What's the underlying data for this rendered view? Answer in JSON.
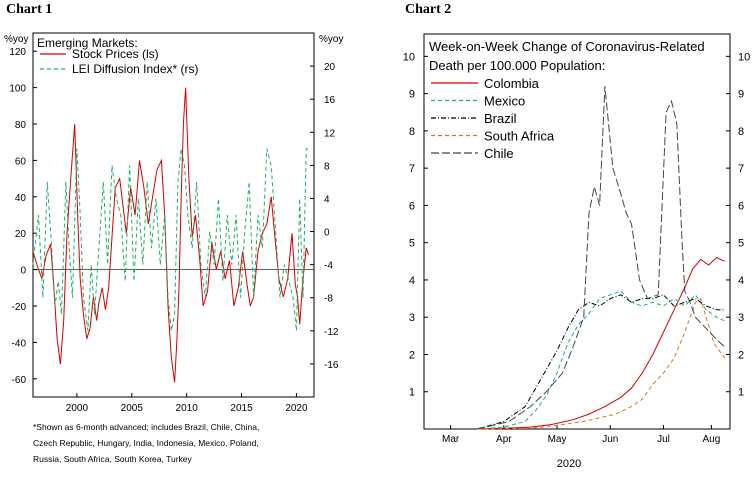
{
  "headings": {
    "chart1": "Chart 1",
    "chart2": "Chart 2"
  },
  "chart_data": [
    {
      "type": "line",
      "title": "Emerging Markets:",
      "y_left_unit": "%yoy",
      "y_right_unit": "%yoy",
      "ylim_left": [
        -70,
        130
      ],
      "ylim_right": [
        -20,
        24
      ],
      "xlim": [
        1996.0,
        2021.6
      ],
      "y_left_ticks": [
        -60,
        -40,
        -20,
        0,
        20,
        40,
        60,
        80,
        100,
        120
      ],
      "y_right_ticks": [
        -16,
        -12,
        -8,
        -4,
        0,
        4,
        8,
        12,
        16,
        20
      ],
      "x_ticks": [
        2000,
        2005,
        2010,
        2015,
        2020
      ],
      "footnote": [
        "*Shown as 6-month advanced; includes Brazil, Chile, China,",
        "Czech Republic, Hungary, India, Indonesia, Mexico, Poland,",
        "Russia, South Africa, South Korea, Turkey"
      ],
      "series": [
        {
          "name": "Stock Prices (ls)",
          "axis": "left",
          "color": "#d40000",
          "dash": "",
          "x": [
            1996.0,
            1996.4,
            1996.8,
            1997.2,
            1997.6,
            1997.9,
            1998.2,
            1998.5,
            1998.8,
            1999.1,
            1999.5,
            1999.8,
            2000.1,
            2000.3,
            2000.6,
            2000.9,
            2001.2,
            2001.5,
            2001.8,
            2002.0,
            2002.3,
            2002.6,
            2002.9,
            2003.2,
            2003.5,
            2003.9,
            2004.2,
            2004.5,
            2004.9,
            2005.3,
            2005.7,
            2006.1,
            2006.5,
            2006.9,
            2007.3,
            2007.7,
            2008.0,
            2008.3,
            2008.6,
            2008.9,
            2009.1,
            2009.3,
            2009.5,
            2009.7,
            2009.9,
            2010.2,
            2010.5,
            2010.8,
            2011.2,
            2011.5,
            2011.9,
            2012.3,
            2012.7,
            2013.1,
            2013.5,
            2013.9,
            2014.3,
            2014.7,
            2015.1,
            2015.5,
            2015.8,
            2016.1,
            2016.5,
            2016.9,
            2017.3,
            2017.7,
            2018.0,
            2018.4,
            2018.8,
            2019.2,
            2019.6,
            2019.9,
            2020.1,
            2020.3,
            2020.6,
            2020.9,
            2021.1
          ],
          "values": [
            10,
            2,
            -5,
            8,
            14,
            -10,
            -38,
            -52,
            -28,
            20,
            55,
            80,
            25,
            -5,
            -25,
            -38,
            -32,
            -15,
            -28,
            -18,
            -10,
            -22,
            -10,
            18,
            45,
            50,
            35,
            20,
            45,
            30,
            60,
            45,
            25,
            40,
            55,
            60,
            30,
            -20,
            -48,
            -62,
            -40,
            -10,
            40,
            80,
            100,
            50,
            18,
            30,
            5,
            -20,
            -12,
            15,
            0,
            10,
            -5,
            5,
            -20,
            -10,
            10,
            -8,
            -20,
            -15,
            10,
            20,
            25,
            40,
            20,
            -5,
            -15,
            -5,
            20,
            -8,
            -15,
            -30,
            -5,
            12,
            8
          ]
        },
        {
          "name": "LEI Diffusion Index* (rs)",
          "axis": "right",
          "color": "#20b060",
          "dash": "4,3",
          "x": [
            1996.0,
            1996.5,
            1996.9,
            1997.3,
            1997.7,
            1998.0,
            1998.3,
            1998.6,
            1999.0,
            1999.3,
            1999.6,
            2000.0,
            2000.3,
            2000.6,
            2001.0,
            2001.3,
            2001.6,
            2002.0,
            2002.4,
            2002.8,
            2003.2,
            2003.6,
            2004.0,
            2004.4,
            2004.8,
            2005.2,
            2005.6,
            2006.0,
            2006.4,
            2006.8,
            2007.2,
            2007.6,
            2008.0,
            2008.3,
            2008.6,
            2008.9,
            2009.2,
            2009.5,
            2009.8,
            2010.1,
            2010.5,
            2010.9,
            2011.3,
            2011.7,
            2012.1,
            2012.5,
            2012.9,
            2013.3,
            2013.7,
            2014.1,
            2014.5,
            2014.9,
            2015.3,
            2015.7,
            2016.1,
            2016.5,
            2016.9,
            2017.3,
            2017.7,
            2018.1,
            2018.5,
            2018.9,
            2019.3,
            2019.7,
            2020.0,
            2020.3,
            2020.6,
            2020.9,
            2021.2
          ],
          "values": [
            -4,
            2,
            -8,
            6,
            -2,
            -9,
            -6,
            -10,
            6,
            -2,
            -8,
            10,
            2,
            -8,
            -12,
            -4,
            -10,
            -2,
            6,
            -4,
            8,
            4,
            2,
            -6,
            8,
            -6,
            4,
            -4,
            6,
            -2,
            4,
            -4,
            2,
            -8,
            -12,
            -10,
            6,
            10,
            8,
            2,
            -2,
            6,
            -4,
            -8,
            0,
            -4,
            4,
            -6,
            2,
            -4,
            2,
            -8,
            0,
            6,
            -8,
            2,
            -2,
            10,
            8,
            0,
            -8,
            -4,
            -6,
            -8,
            -12,
            4,
            -8,
            10,
            10
          ]
        }
      ]
    },
    {
      "type": "line",
      "title": "Week-on-Week Change of Coronavirus-Related",
      "title2": "Death per 100.000 Population:",
      "ylim": [
        0,
        10.6
      ],
      "xlim": [
        0,
        5.75
      ],
      "y_ticks": [
        1,
        2,
        3,
        4,
        5,
        6,
        7,
        8,
        9,
        10
      ],
      "x_ticks": [
        0.5,
        1.5,
        2.5,
        3.5,
        4.5,
        5.4
      ],
      "x_tick_labels": [
        "Mar",
        "Apr",
        "May",
        "Jun",
        "Jul",
        "Aug"
      ],
      "xlabel": "2020",
      "series": [
        {
          "name": "Colombia",
          "color": "#d40000",
          "dash": "",
          "x": [
            1.0,
            1.5,
            2.0,
            2.4,
            2.8,
            3.1,
            3.4,
            3.7,
            3.9,
            4.1,
            4.3,
            4.5,
            4.7,
            4.9,
            5.05,
            5.2,
            5.35,
            5.5,
            5.65
          ],
          "values": [
            0,
            0.02,
            0.05,
            0.12,
            0.25,
            0.4,
            0.6,
            0.85,
            1.1,
            1.5,
            2.0,
            2.6,
            3.2,
            3.8,
            4.3,
            4.55,
            4.4,
            4.6,
            4.5
          ]
        },
        {
          "name": "Mexico",
          "color": "#20b060",
          "dash": "4,3",
          "x": [
            1.0,
            1.5,
            1.9,
            2.1,
            2.3,
            2.5,
            2.7,
            2.9,
            3.1,
            3.3,
            3.5,
            3.7,
            3.9,
            4.1,
            4.3,
            4.5,
            4.7,
            4.9,
            5.1,
            5.3,
            5.5,
            5.65
          ],
          "values": [
            0,
            0.05,
            0.2,
            0.5,
            0.9,
            1.5,
            2.3,
            2.8,
            3.1,
            3.5,
            3.6,
            3.7,
            3.4,
            3.3,
            3.4,
            3.3,
            3.5,
            3.3,
            3.6,
            3.2,
            3.0,
            2.9
          ]
        },
        {
          "name": "Brazil",
          "color": "#000000",
          "dash": "5,2,1,2",
          "x": [
            1.0,
            1.5,
            1.9,
            2.1,
            2.3,
            2.5,
            2.7,
            2.9,
            3.1,
            3.3,
            3.5,
            3.7,
            3.9,
            4.1,
            4.3,
            4.5,
            4.7,
            4.9,
            5.1,
            5.3,
            5.5,
            5.65
          ],
          "values": [
            0,
            0.2,
            0.6,
            1.1,
            1.6,
            2.1,
            2.7,
            3.2,
            3.4,
            3.3,
            3.5,
            3.6,
            3.4,
            3.5,
            3.5,
            3.6,
            3.3,
            3.4,
            3.5,
            3.3,
            3.2,
            3.2
          ]
        },
        {
          "name": "South Africa",
          "color": "#e07020",
          "dash": "4,3",
          "x": [
            1.0,
            2.0,
            2.5,
            3.0,
            3.3,
            3.6,
            3.9,
            4.1,
            4.3,
            4.5,
            4.7,
            4.9,
            5.1,
            5.2,
            5.3,
            5.45,
            5.65
          ],
          "values": [
            0,
            0.02,
            0.1,
            0.2,
            0.3,
            0.4,
            0.6,
            0.8,
            1.2,
            1.5,
            1.9,
            2.6,
            3.4,
            3.5,
            3.0,
            2.3,
            1.9
          ]
        },
        {
          "name": "Chile",
          "color": "#444444",
          "dash": "8,3",
          "x": [
            1.0,
            1.6,
            2.0,
            2.3,
            2.6,
            2.8,
            3.0,
            3.1,
            3.2,
            3.3,
            3.4,
            3.55,
            3.7,
            3.8,
            3.9,
            4.0,
            4.05,
            4.2,
            4.4,
            4.55,
            4.65,
            4.75,
            4.85,
            4.9,
            5.0,
            5.1,
            5.3,
            5.5,
            5.65
          ],
          "values": [
            0,
            0.2,
            0.6,
            1.0,
            1.5,
            2.2,
            3.0,
            5.8,
            6.5,
            6.0,
            9.2,
            7.0,
            6.3,
            5.8,
            5.5,
            4.5,
            4.0,
            3.5,
            3.6,
            8.5,
            8.8,
            8.2,
            5.0,
            3.7,
            3.4,
            3.0,
            2.7,
            2.4,
            2.2
          ]
        }
      ]
    }
  ]
}
